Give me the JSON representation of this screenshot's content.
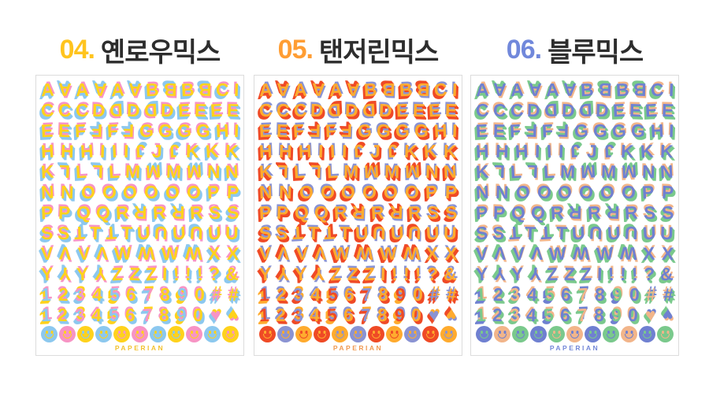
{
  "page": {
    "background": "#ffffff"
  },
  "sheet_layout": {
    "rows": [
      "A *A A *A A *A B *B B *B C I",
      "C C C D *D D *D D E E E E",
      "E E F *F F *F G G G G H I",
      "H H H I I I *J J *J K K K",
      "K *L L *L L M *M M *M N N",
      "N N O O O O O O P P",
      "P P Q Q R *R R *R R S S",
      "S S *T T *T T U *U U *U U U",
      "V *V V *V W *W W *W X X",
      "Y *Y Y *Y Z Z Z I ! ! ! ? &",
      "1 2 3 4 5 6 7 8 9 0 # #",
      "1 2 3 4 5 6 7 8 9 0 ♥ *♥"
    ],
    "number_row_start": 10
  },
  "products": [
    {
      "label": "04.",
      "name": "옌로우믹스",
      "label_color": "#FFC41E",
      "palette": {
        "face": "#FFD21C",
        "top": "#F794C5",
        "bottom": "#8CC8EF"
      },
      "brand": "PAPERIAN",
      "brand_color": "#F2C230",
      "smileys": [
        {
          "bg": "#8CC8EF",
          "face": "#FFD21C"
        },
        {
          "bg": "#F794C5",
          "face": "#FFD21C"
        },
        {
          "bg": "#FFD21C",
          "face": "#8CC8EF"
        },
        {
          "bg": "#8CC8EF",
          "face": "#FFD21C"
        },
        {
          "bg": "#FFD21C",
          "face": "#F794C5"
        },
        {
          "bg": "#F794C5",
          "face": "#FFD21C"
        },
        {
          "bg": "#8CC8EF",
          "face": "#FFD21C"
        },
        {
          "bg": "#FFD21C",
          "face": "#8CC8EF"
        },
        {
          "bg": "#F794C5",
          "face": "#FFD21C"
        },
        {
          "bg": "#8CC8EF",
          "face": "#FFD21C"
        },
        {
          "bg": "#FFD21C",
          "face": "#F794C5"
        }
      ]
    },
    {
      "label": "05.",
      "name": "탠저린믹스",
      "label_color": "#FF9D33",
      "palette": {
        "face": "#FFAB2E",
        "top": "#8A93D3",
        "bottom": "#EF4A26"
      },
      "brand": "PAPERIAN",
      "brand_color": "#F09A52",
      "smileys": [
        {
          "bg": "#EF4A26",
          "face": "#FFAB2E"
        },
        {
          "bg": "#8A93D3",
          "face": "#FFAB2E"
        },
        {
          "bg": "#FFAB2E",
          "face": "#EF4A26"
        },
        {
          "bg": "#EF4A26",
          "face": "#FFAB2E"
        },
        {
          "bg": "#FFAB2E",
          "face": "#8A93D3"
        },
        {
          "bg": "#8A93D3",
          "face": "#FFAB2E"
        },
        {
          "bg": "#EF4A26",
          "face": "#FFAB2E"
        },
        {
          "bg": "#FFAB2E",
          "face": "#EF4A26"
        },
        {
          "bg": "#8A93D3",
          "face": "#FFAB2E"
        },
        {
          "bg": "#EF4A26",
          "face": "#FFAB2E"
        },
        {
          "bg": "#FFAB2E",
          "face": "#8A93D3"
        }
      ]
    },
    {
      "label": "06.",
      "name": "블루믹스",
      "label_color": "#7188DB",
      "palette": {
        "face": "#6F80D1",
        "top": "#F2B58A",
        "bottom": "#7AC98C"
      },
      "brand": "PAPERIAN",
      "brand_color": "#7488D8",
      "smileys": [
        {
          "bg": "#6F80D1",
          "face": "#7AC98C"
        },
        {
          "bg": "#F2B58A",
          "face": "#6F80D1"
        },
        {
          "bg": "#7AC98C",
          "face": "#6F80D1"
        },
        {
          "bg": "#6F80D1",
          "face": "#7AC98C"
        },
        {
          "bg": "#7AC98C",
          "face": "#F2B58A"
        },
        {
          "bg": "#F2B58A",
          "face": "#6F80D1"
        },
        {
          "bg": "#6F80D1",
          "face": "#7AC98C"
        },
        {
          "bg": "#7AC98C",
          "face": "#6F80D1"
        },
        {
          "bg": "#F2B58A",
          "face": "#6F80D1"
        },
        {
          "bg": "#6F80D1",
          "face": "#7AC98C"
        },
        {
          "bg": "#7AC98C",
          "face": "#F2B58A"
        }
      ]
    }
  ]
}
